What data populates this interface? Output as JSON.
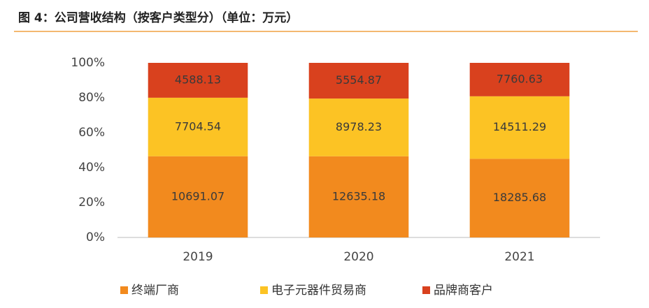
{
  "chart_data": {
    "type": "bar",
    "stacked": "percent",
    "title": "图 4：公司营收结构（按客户类型分）（单位：万元）",
    "categories": [
      "2019",
      "2020",
      "2021"
    ],
    "series": [
      {
        "name": "终端厂商",
        "color": "#f28a1e",
        "values": [
          10691.07,
          12635.18,
          18285.68
        ]
      },
      {
        "name": "电子元器件贸易商",
        "color": "#fcc324",
        "values": [
          7704.54,
          8978.23,
          14511.29
        ]
      },
      {
        "name": "品牌商客户",
        "color": "#d9411e",
        "values": [
          4588.13,
          5554.87,
          7760.63
        ]
      }
    ],
    "ylim": [
      0,
      100
    ],
    "yticks": [
      {
        "value": 0,
        "label": "0%"
      },
      {
        "value": 20,
        "label": "20%"
      },
      {
        "value": 40,
        "label": "40%"
      },
      {
        "value": 60,
        "label": "60%"
      },
      {
        "value": 80,
        "label": "80%"
      },
      {
        "value": 100,
        "label": "100%"
      }
    ],
    "grid": false,
    "legend": "bottom"
  }
}
